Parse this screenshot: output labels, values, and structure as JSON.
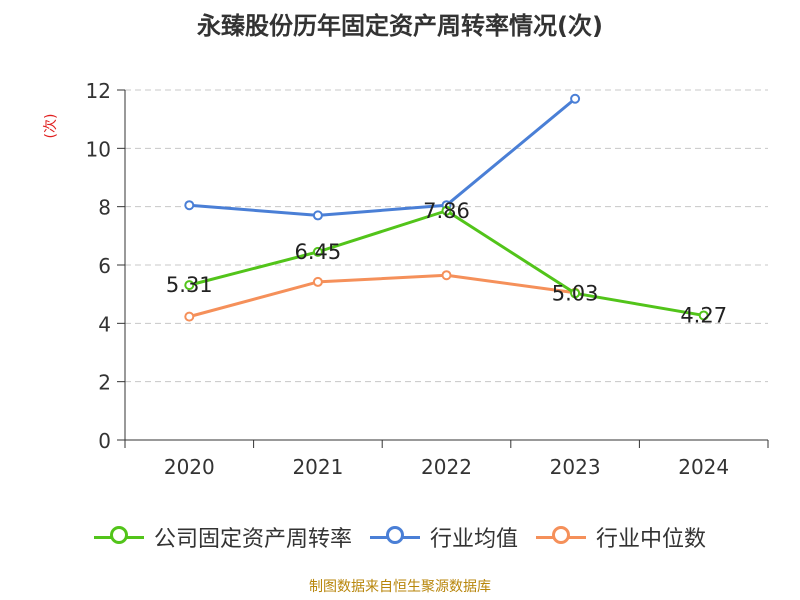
{
  "chart_data": {
    "type": "line",
    "title": "永臻股份历年固定资产周转率情况(次)",
    "ylabel": "(次)",
    "categories": [
      "2020",
      "2021",
      "2022",
      "2023",
      "2024"
    ],
    "ylim": [
      0,
      12
    ],
    "yticks": [
      0,
      2,
      4,
      6,
      8,
      10,
      12
    ],
    "grid": true,
    "legend_position": "bottom",
    "series": [
      {
        "name": "公司固定资产周转率",
        "color": "#52c41a",
        "values": [
          5.31,
          6.45,
          7.86,
          5.03,
          4.27
        ],
        "labels": [
          "5.31",
          "6.45",
          "7.86",
          "5.03",
          "4.27"
        ]
      },
      {
        "name": "行业均值",
        "color": "#4a7fd6",
        "values": [
          8.05,
          7.7,
          8.05,
          11.7,
          null
        ]
      },
      {
        "name": "行业中位数",
        "color": "#f5905a",
        "values": [
          4.23,
          5.42,
          5.65,
          5.05,
          null
        ]
      }
    ]
  },
  "source": "制图数据来自恒生聚源数据库"
}
